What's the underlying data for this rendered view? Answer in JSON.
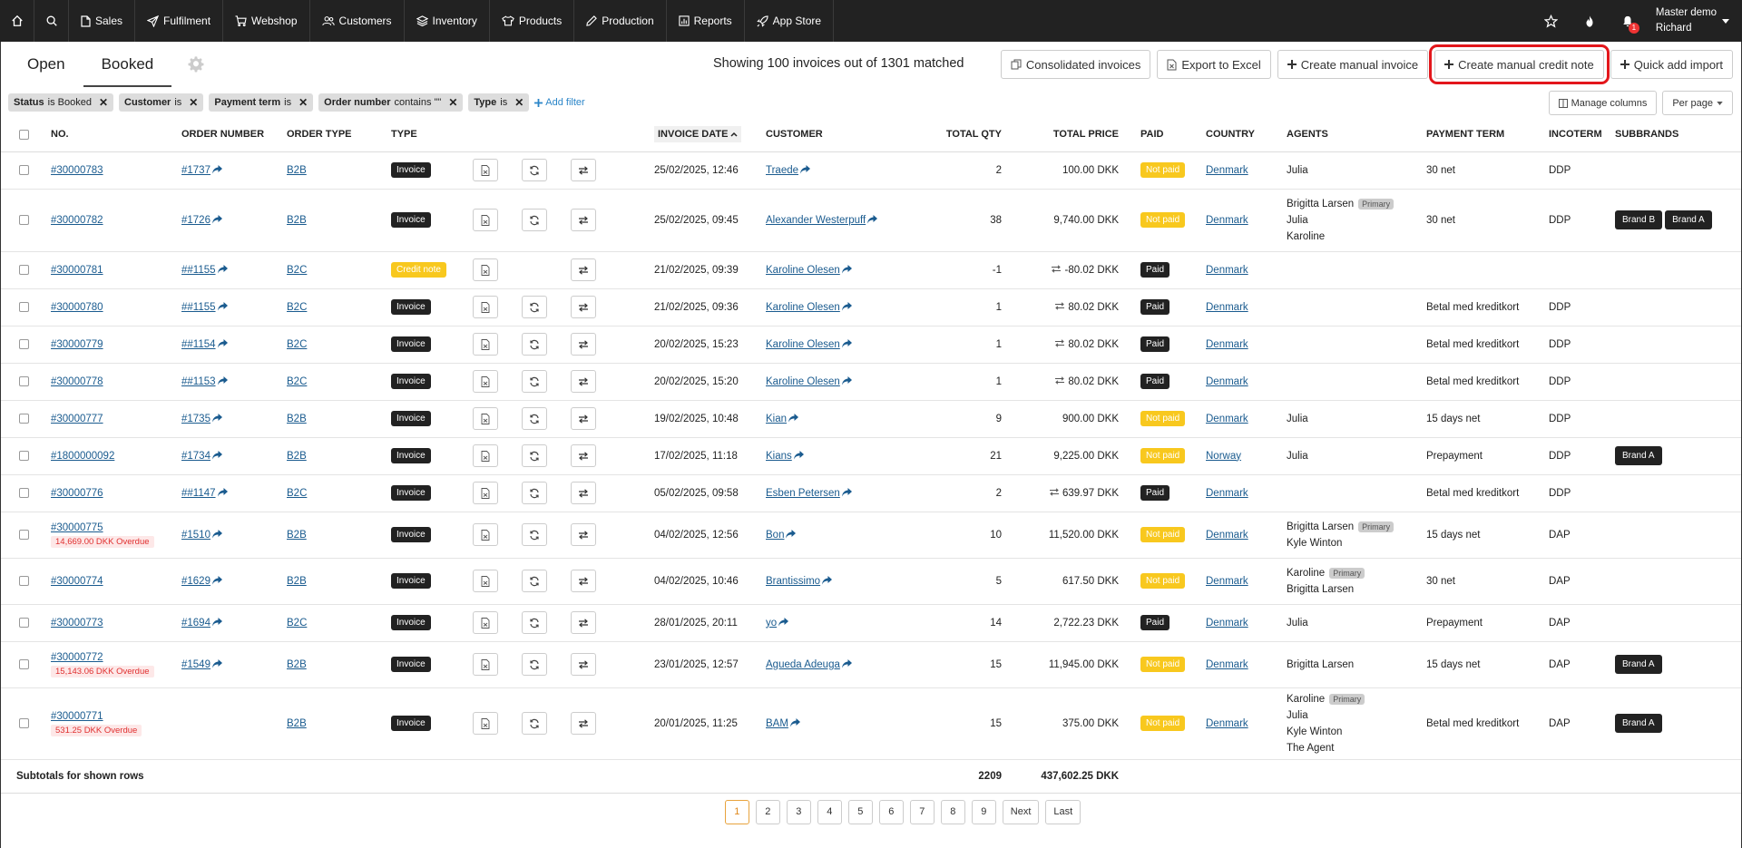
{
  "nav": {
    "items": [
      {
        "name": "nav-sales",
        "label": "Sales",
        "icon": "file-icon"
      },
      {
        "name": "nav-fulfilment",
        "label": "Fulfilment",
        "icon": "send-icon"
      },
      {
        "name": "nav-webshop",
        "label": "Webshop",
        "icon": "cart-icon"
      },
      {
        "name": "nav-customers",
        "label": "Customers",
        "icon": "users-icon"
      },
      {
        "name": "nav-inventory",
        "label": "Inventory",
        "icon": "layers-icon"
      },
      {
        "name": "nav-products",
        "label": "Products",
        "icon": "shirt-icon"
      },
      {
        "name": "nav-production",
        "label": "Production",
        "icon": "pencil-icon"
      },
      {
        "name": "nav-reports",
        "label": "Reports",
        "icon": "chart-icon"
      },
      {
        "name": "nav-app-store",
        "label": "App Store",
        "icon": "rocket-icon"
      }
    ],
    "notifications": "1",
    "user_line1": "Master demo",
    "user_line2": "Richard"
  },
  "tabs": {
    "open": "Open",
    "booked": "Booked"
  },
  "summary": "Showing 100 invoices out of 1301 matched",
  "actions": {
    "consolidated": "Consolidated invoices",
    "export": "Export to Excel",
    "manual_invoice": "Create manual invoice",
    "manual_credit": "Create manual credit note",
    "quick_import": "Quick add import"
  },
  "filters": [
    {
      "field": "Status",
      "op": "is Booked"
    },
    {
      "field": "Customer",
      "op": "is"
    },
    {
      "field": "Payment term",
      "op": "is"
    },
    {
      "field": "Order number",
      "op": "contains \"\""
    },
    {
      "field": "Type",
      "op": "is"
    }
  ],
  "add_filter": "Add filter",
  "manage_columns": "Manage columns",
  "per_page": "Per page",
  "columns": {
    "no": "NO.",
    "order_number": "ORDER NUMBER",
    "order_type": "ORDER TYPE",
    "type": "TYPE",
    "invoice_date": "INVOICE DATE",
    "customer": "CUSTOMER",
    "total_qty": "TOTAL QTY",
    "total_price": "TOTAL PRICE",
    "paid": "PAID",
    "country": "COUNTRY",
    "agents": "AGENTS",
    "payment_term": "PAYMENT TERM",
    "incoterm": "INCOTERM",
    "subbrands": "SUBBRANDS"
  },
  "rows": [
    {
      "no": "#30000783",
      "overdue": "",
      "order": "#1737",
      "otype": "B2B",
      "type": "Invoice",
      "sync": true,
      "date": "25/02/2025, 12:46",
      "customer": "Traede",
      "qty": "2",
      "price": "100.00 DKK",
      "conv": false,
      "paid": "Not paid",
      "country": "Denmark",
      "agents": [
        {
          "n": "Julia",
          "p": ""
        }
      ],
      "term": "30 net",
      "inco": "DDP",
      "brands": []
    },
    {
      "no": "#30000782",
      "overdue": "",
      "order": "#1726",
      "otype": "B2B",
      "type": "Invoice",
      "sync": true,
      "date": "25/02/2025, 09:45",
      "customer": "Alexander Westerpuff",
      "qty": "38",
      "price": "9,740.00 DKK",
      "conv": false,
      "paid": "Not paid",
      "country": "Denmark",
      "agents": [
        {
          "n": "Brigitta Larsen",
          "p": "Primary"
        },
        {
          "n": "Julia",
          "p": ""
        },
        {
          "n": "Karoline",
          "p": ""
        }
      ],
      "term": "30 net",
      "inco": "DDP",
      "brands": [
        "Brand B",
        "Brand A"
      ]
    },
    {
      "no": "#30000781",
      "overdue": "",
      "order": "##1155",
      "otype": "B2C",
      "type": "Credit note",
      "sync": false,
      "date": "21/02/2025, 09:39",
      "customer": "Karoline Olesen",
      "qty": "-1",
      "price": "-80.02 DKK",
      "conv": true,
      "paid": "Paid",
      "country": "Denmark",
      "agents": [],
      "term": "",
      "inco": "",
      "brands": []
    },
    {
      "no": "#30000780",
      "overdue": "",
      "order": "##1155",
      "otype": "B2C",
      "type": "Invoice",
      "sync": true,
      "date": "21/02/2025, 09:36",
      "customer": "Karoline Olesen",
      "qty": "1",
      "price": "80.02 DKK",
      "conv": true,
      "paid": "Paid",
      "country": "Denmark",
      "agents": [],
      "term": "Betal med kreditkort",
      "inco": "DDP",
      "brands": []
    },
    {
      "no": "#30000779",
      "overdue": "",
      "order": "##1154",
      "otype": "B2C",
      "type": "Invoice",
      "sync": true,
      "date": "20/02/2025, 15:23",
      "customer": "Karoline Olesen",
      "qty": "1",
      "price": "80.02 DKK",
      "conv": true,
      "paid": "Paid",
      "country": "Denmark",
      "agents": [],
      "term": "Betal med kreditkort",
      "inco": "DDP",
      "brands": []
    },
    {
      "no": "#30000778",
      "overdue": "",
      "order": "##1153",
      "otype": "B2C",
      "type": "Invoice",
      "sync": true,
      "date": "20/02/2025, 15:20",
      "customer": "Karoline Olesen",
      "qty": "1",
      "price": "80.02 DKK",
      "conv": true,
      "paid": "Paid",
      "country": "Denmark",
      "agents": [],
      "term": "Betal med kreditkort",
      "inco": "DDP",
      "brands": []
    },
    {
      "no": "#30000777",
      "overdue": "",
      "order": "#1735",
      "otype": "B2B",
      "type": "Invoice",
      "sync": true,
      "date": "19/02/2025, 10:48",
      "customer": "Kian",
      "qty": "9",
      "price": "900.00 DKK",
      "conv": false,
      "paid": "Not paid",
      "country": "Denmark",
      "agents": [
        {
          "n": "Julia",
          "p": ""
        }
      ],
      "term": "15 days net",
      "inco": "DDP",
      "brands": []
    },
    {
      "no": "#1800000092",
      "overdue": "",
      "order": "#1734",
      "otype": "B2B",
      "type": "Invoice",
      "sync": true,
      "date": "17/02/2025, 11:18",
      "customer": "Kians",
      "qty": "21",
      "price": "9,225.00 DKK",
      "conv": false,
      "paid": "Not paid",
      "country": "Norway",
      "agents": [
        {
          "n": "Julia",
          "p": ""
        }
      ],
      "term": "Prepayment",
      "inco": "DDP",
      "brands": [
        "Brand A"
      ]
    },
    {
      "no": "#30000776",
      "overdue": "",
      "order": "##1147",
      "otype": "B2C",
      "type": "Invoice",
      "sync": true,
      "date": "05/02/2025, 09:58",
      "customer": "Esben Petersen",
      "qty": "2",
      "price": "639.97 DKK",
      "conv": true,
      "paid": "Paid",
      "country": "Denmark",
      "agents": [],
      "term": "Betal med kreditkort",
      "inco": "DDP",
      "brands": []
    },
    {
      "no": "#30000775",
      "overdue": "14,669.00 DKK Overdue",
      "order": "#1510",
      "otype": "B2B",
      "type": "Invoice",
      "sync": true,
      "date": "04/02/2025, 12:56",
      "customer": "Bon",
      "qty": "10",
      "price": "11,520.00 DKK",
      "conv": false,
      "paid": "Not paid",
      "country": "Denmark",
      "agents": [
        {
          "n": "Brigitta Larsen",
          "p": "Primary"
        },
        {
          "n": "Kyle Winton",
          "p": ""
        }
      ],
      "term": "15 days net",
      "inco": "DAP",
      "brands": []
    },
    {
      "no": "#30000774",
      "overdue": "",
      "order": "#1629",
      "otype": "B2B",
      "type": "Invoice",
      "sync": true,
      "date": "04/02/2025, 10:46",
      "customer": "Brantissimo",
      "qty": "5",
      "price": "617.50 DKK",
      "conv": false,
      "paid": "Not paid",
      "country": "Denmark",
      "agents": [
        {
          "n": "Karoline",
          "p": "Primary"
        },
        {
          "n": "Brigitta Larsen",
          "p": ""
        }
      ],
      "term": "30 net",
      "inco": "DAP",
      "brands": []
    },
    {
      "no": "#30000773",
      "overdue": "",
      "order": "#1694",
      "otype": "B2C",
      "type": "Invoice",
      "sync": true,
      "date": "28/01/2025, 20:11",
      "customer": "yo",
      "qty": "14",
      "price": "2,722.23 DKK",
      "conv": false,
      "paid": "Paid",
      "country": "Denmark",
      "agents": [
        {
          "n": "Julia",
          "p": ""
        }
      ],
      "term": "Prepayment",
      "inco": "DAP",
      "brands": []
    },
    {
      "no": "#30000772",
      "overdue": "15,143.06 DKK Overdue",
      "order": "#1549",
      "otype": "B2B",
      "type": "Invoice",
      "sync": true,
      "date": "23/01/2025, 12:57",
      "customer": "Agueda Adeuga",
      "qty": "15",
      "price": "11,945.00 DKK",
      "conv": false,
      "paid": "Not paid",
      "country": "Denmark",
      "agents": [
        {
          "n": "Brigitta Larsen",
          "p": ""
        }
      ],
      "term": "15 days net",
      "inco": "DAP",
      "brands": [
        "Brand A"
      ]
    },
    {
      "no": "#30000771",
      "overdue": "531.25 DKK Overdue",
      "order": "",
      "otype": "B2B",
      "type": "Invoice",
      "sync": true,
      "date": "20/01/2025, 11:25",
      "customer": "BAM",
      "qty": "15",
      "price": "375.00 DKK",
      "conv": false,
      "paid": "Not paid",
      "country": "Denmark",
      "agents": [
        {
          "n": "Karoline",
          "p": "Primary"
        },
        {
          "n": "Julia",
          "p": ""
        },
        {
          "n": "Kyle Winton",
          "p": ""
        },
        {
          "n": "The Agent",
          "p": ""
        }
      ],
      "term": "Betal med kreditkort",
      "inco": "DAP",
      "brands": [
        "Brand A"
      ]
    }
  ],
  "row_heights": [],
  "subtotal": {
    "label": "Subtotals for shown rows",
    "qty": "2209",
    "price": "437,602.25 DKK"
  },
  "pagination": {
    "pages": [
      "1",
      "2",
      "3",
      "4",
      "5",
      "6",
      "7",
      "8",
      "9"
    ],
    "current": "1",
    "next": "Next",
    "last": "Last"
  },
  "colors": {
    "nav_bg": "#222222",
    "accent_link": "#1a5b8f",
    "not_paid": "#f8c81e",
    "highlight": "#e3161b"
  }
}
